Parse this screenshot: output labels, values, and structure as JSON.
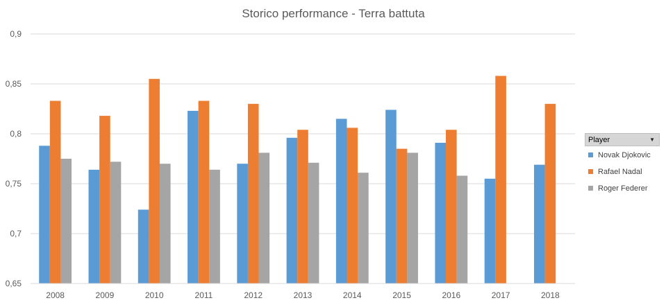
{
  "chart_data": {
    "type": "bar",
    "title": "Storico performance - Terra battuta",
    "xlabel": "",
    "ylabel": "",
    "categories": [
      "2008",
      "2009",
      "2010",
      "2011",
      "2012",
      "2013",
      "2014",
      "2015",
      "2016",
      "2017",
      "2018"
    ],
    "ylim": [
      0.65,
      0.9
    ],
    "yticks": [
      0.65,
      0.7,
      0.75,
      0.8,
      0.85,
      0.9
    ],
    "ytick_labels": [
      "0,65",
      "0,7",
      "0,75",
      "0,8",
      "0,85",
      "0,9"
    ],
    "grid": true,
    "legend_position": "right",
    "series": [
      {
        "name": "Novak Djokovic",
        "color": "#5b9bd5",
        "values": [
          0.788,
          0.764,
          0.724,
          0.823,
          0.77,
          0.796,
          0.815,
          0.824,
          0.791,
          0.755,
          0.769
        ]
      },
      {
        "name": "Rafael Nadal",
        "color": "#ed7d31",
        "values": [
          0.833,
          0.818,
          0.855,
          0.833,
          0.83,
          0.804,
          0.806,
          0.785,
          0.804,
          0.858,
          0.83
        ]
      },
      {
        "name": "Roger Federer",
        "color": "#a5a5a5",
        "values": [
          0.775,
          0.772,
          0.77,
          0.764,
          0.781,
          0.771,
          0.761,
          0.781,
          0.758,
          null,
          null
        ]
      }
    ]
  },
  "legend": {
    "field_button_label": "Player",
    "field_button_icon": "dropdown-arrow-icon"
  }
}
